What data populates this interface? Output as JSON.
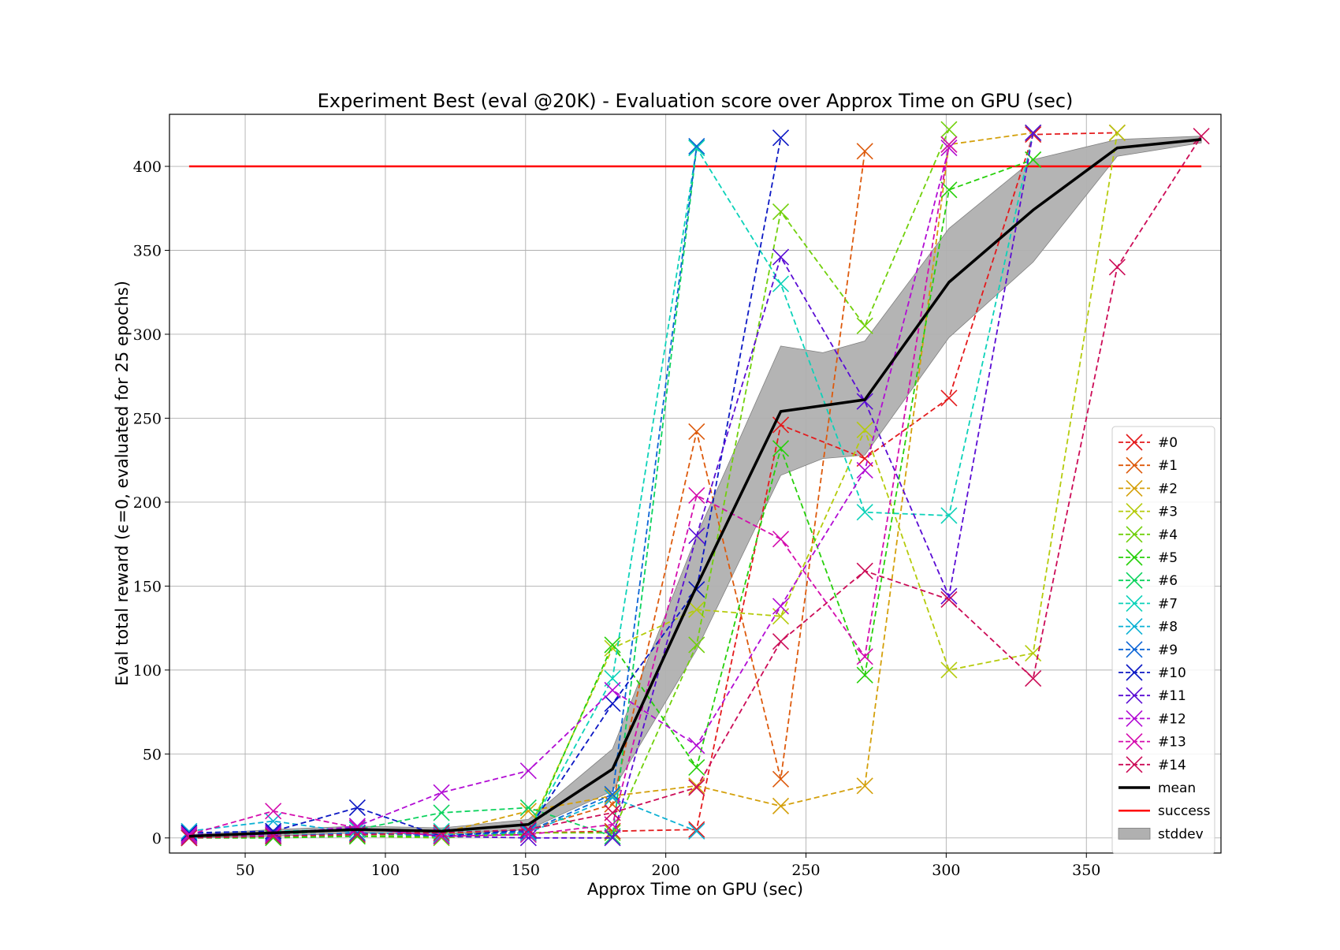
{
  "chart_data": {
    "type": "line",
    "title": "Experiment Best (eval @20K) - Evaluation score over Approx Time on GPU (sec)",
    "xlabel": "Approx Time on GPU (sec)",
    "ylabel": "Eval total reward (ϵ=0, evaluated for 25 epochs)",
    "xlim": [
      23,
      398
    ],
    "ylim": [
      -9,
      431
    ],
    "xticks": [
      50,
      100,
      150,
      200,
      250,
      300,
      350
    ],
    "yticks": [
      0,
      50,
      100,
      150,
      200,
      250,
      300,
      350,
      400
    ],
    "grid": true,
    "legend_position": "lower-right",
    "series": [
      {
        "name": "#0",
        "color": "#e41a1c",
        "x": [
          30,
          60,
          90,
          120,
          151,
          181,
          211,
          241,
          271,
          301,
          331,
          361
        ],
        "y": [
          1,
          2,
          5,
          3,
          3,
          4,
          5,
          246,
          226,
          262,
          419,
          420
        ]
      },
      {
        "name": "#1",
        "color": "#dd5a0c",
        "x": [
          30,
          60,
          90,
          120,
          151,
          181,
          211,
          241,
          271
        ],
        "y": [
          0,
          1,
          2,
          2,
          5,
          20,
          242,
          35,
          409
        ]
      },
      {
        "name": "#2",
        "color": "#d4a00b",
        "x": [
          30,
          60,
          90,
          120,
          151,
          181,
          211,
          241,
          271,
          301,
          331
        ],
        "y": [
          0,
          1,
          2,
          3,
          16,
          25,
          31,
          19,
          31,
          413,
          420
        ]
      },
      {
        "name": "#3",
        "color": "#b5cb0c",
        "x": [
          30,
          60,
          90,
          120,
          151,
          181,
          211,
          241,
          271,
          301,
          331,
          361
        ],
        "y": [
          1,
          1,
          3,
          2,
          4,
          113,
          136,
          132,
          243,
          100,
          110,
          420
        ]
      },
      {
        "name": "#4",
        "color": "#71d00b",
        "x": [
          30,
          60,
          90,
          120,
          151,
          181,
          211,
          241,
          271,
          301
        ],
        "y": [
          2,
          1,
          1,
          0,
          3,
          3,
          115,
          373,
          305,
          422
        ]
      },
      {
        "name": "#5",
        "color": "#27d00b",
        "x": [
          30,
          60,
          90,
          120,
          151,
          181,
          211,
          241,
          271,
          301,
          331
        ],
        "y": [
          0,
          0,
          1,
          1,
          2,
          115,
          42,
          232,
          97,
          386,
          404
        ]
      },
      {
        "name": "#6",
        "color": "#0cd35e",
        "x": [
          30,
          60,
          90,
          120,
          151,
          181,
          211
        ],
        "y": [
          1,
          2,
          5,
          15,
          18,
          1,
          411
        ]
      },
      {
        "name": "#7",
        "color": "#0cd2b9",
        "x": [
          30,
          60,
          90,
          120,
          151,
          181,
          211,
          241,
          271,
          301,
          331
        ],
        "y": [
          3,
          4,
          5,
          4,
          4,
          95,
          411,
          330,
          194,
          192,
          420
        ]
      },
      {
        "name": "#8",
        "color": "#0cb1d4",
        "x": [
          30,
          60,
          90,
          120,
          151,
          181,
          211
        ],
        "y": [
          4,
          10,
          3,
          2,
          3,
          24,
          4
        ]
      },
      {
        "name": "#9",
        "color": "#0c65d6",
        "x": [
          30,
          60,
          90,
          120,
          151,
          181,
          211
        ],
        "y": [
          2,
          1,
          3,
          1,
          4,
          26,
          412
        ]
      },
      {
        "name": "#10",
        "color": "#0c18c4",
        "x": [
          30,
          60,
          90,
          120,
          151,
          181,
          211,
          241
        ],
        "y": [
          3,
          4,
          18,
          1,
          5,
          80,
          148,
          417
        ]
      },
      {
        "name": "#11",
        "color": "#5a0cd4",
        "x": [
          30,
          60,
          90,
          120,
          151,
          181,
          211,
          241,
          271,
          301,
          331
        ],
        "y": [
          2,
          3,
          6,
          1,
          0,
          0,
          180,
          346,
          260,
          144,
          420
        ]
      },
      {
        "name": "#12",
        "color": "#b20cd4",
        "x": [
          30,
          60,
          90,
          120,
          151,
          181,
          211,
          241,
          271,
          301
        ],
        "y": [
          1,
          2,
          7,
          27,
          40,
          88,
          55,
          138,
          219,
          411
        ]
      },
      {
        "name": "#13",
        "color": "#d40cae",
        "x": [
          30,
          60,
          90,
          120,
          151,
          181,
          211,
          241,
          271,
          301
        ],
        "y": [
          2,
          16,
          6,
          1,
          2,
          8,
          204,
          178,
          108,
          413
        ]
      },
      {
        "name": "#14",
        "color": "#cc0c57",
        "x": [
          30,
          60,
          90,
          120,
          151,
          181,
          211,
          241,
          271,
          301,
          331,
          361,
          391
        ],
        "y": [
          0,
          1,
          2,
          3,
          5,
          15,
          30,
          117,
          159,
          142,
          95,
          340,
          418
        ]
      }
    ],
    "mean": {
      "name": "mean",
      "color": "#000000",
      "x": [
        30,
        60,
        90,
        120,
        151,
        181,
        211,
        241,
        271,
        301,
        331,
        361,
        391
      ],
      "y": [
        1,
        3,
        5,
        4,
        8,
        41,
        150,
        254,
        261,
        331,
        374,
        411,
        416
      ]
    },
    "stddev": {
      "name": "stddev",
      "color": "#b0b0b0",
      "x": [
        30,
        60,
        90,
        120,
        151,
        181,
        211,
        241,
        256,
        271,
        301,
        331,
        361,
        391
      ],
      "upper": [
        2,
        5,
        7,
        6,
        11,
        53,
        180,
        293,
        289,
        296,
        363,
        404,
        416,
        418
      ],
      "lower": [
        0,
        1,
        3,
        2,
        5,
        28,
        112,
        216,
        226,
        228,
        298,
        343,
        406,
        414
      ]
    },
    "success": {
      "name": "success",
      "color": "#ff0000",
      "y": 400,
      "x": [
        30,
        391
      ]
    }
  }
}
